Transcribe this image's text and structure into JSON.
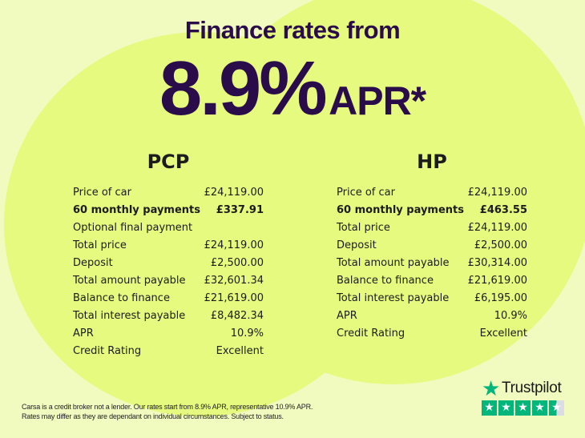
{
  "header": {
    "headline": "Finance rates from",
    "rate": "8.9%",
    "rate_suffix": "APR*"
  },
  "colors": {
    "title": "#2b0c4a",
    "background": "#f1fbc0",
    "circle": "#e5fa7e",
    "trustpilot_green": "#00b67a"
  },
  "pcp": {
    "title": "PCP",
    "rows": [
      {
        "label": "Price of car",
        "value": "£24,119.00"
      },
      {
        "label": "60 monthly payments",
        "value": "£337.91",
        "bold": true
      },
      {
        "label": "Optional final payment",
        "value": ""
      },
      {
        "label": "Total price",
        "value": "£24,119.00"
      },
      {
        "label": "Deposit",
        "value": "£2,500.00"
      },
      {
        "label": "Total amount payable",
        "value": "£32,601.34"
      },
      {
        "label": "Balance to finance",
        "value": "£21,619.00"
      },
      {
        "label": "Total interest payable",
        "value": "£8,482.34"
      },
      {
        "label": "APR",
        "value": "10.9%"
      },
      {
        "label": "Credit Rating",
        "value": "Excellent"
      }
    ]
  },
  "hp": {
    "title": "HP",
    "rows": [
      {
        "label": "Price of car",
        "value": "£24,119.00"
      },
      {
        "label": "60 monthly payments",
        "value": "£463.55",
        "bold": true
      },
      {
        "label": "Total price",
        "value": "£24,119.00"
      },
      {
        "label": "Deposit",
        "value": "£2,500.00"
      },
      {
        "label": "Total amount payable",
        "value": "£30,314.00"
      },
      {
        "label": "Balance to finance",
        "value": "£21,619.00"
      },
      {
        "label": "Total interest payable",
        "value": "£6,195.00"
      },
      {
        "label": "APR",
        "value": "10.9%"
      },
      {
        "label": "Credit Rating",
        "value": "Excellent"
      }
    ]
  },
  "disclaimer": {
    "line1": "Carsa is a credit broker not a lender. Our rates start from 8.9% APR, representative 10.9% APR.",
    "line2": "Rates may differ as they are dependant on individual circumstances. Subject to status."
  },
  "trustpilot": {
    "name": "Trustpilot",
    "icon": "star-icon",
    "rating": 4.5,
    "max": 5
  }
}
